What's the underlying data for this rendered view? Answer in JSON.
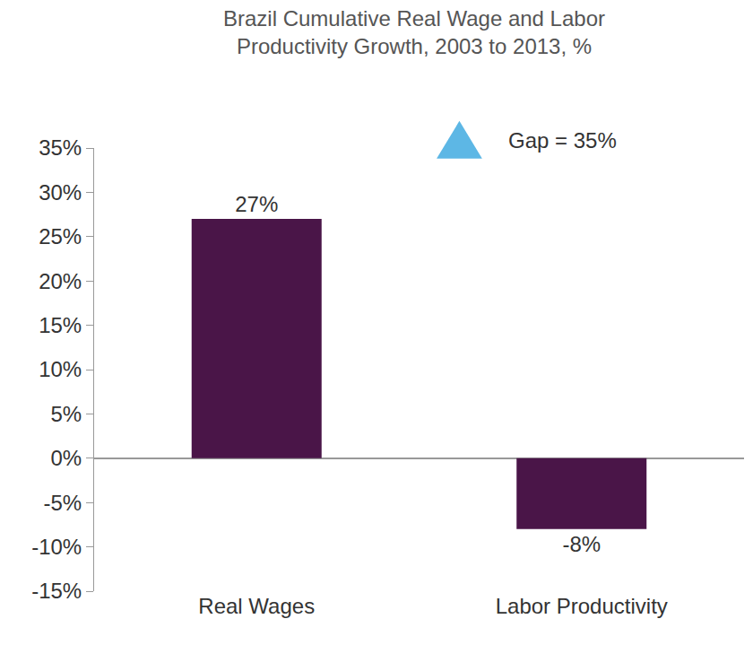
{
  "chart_data": {
    "type": "bar",
    "title": "Brazil Cumulative Real Wage and Labor Productivity Growth, 2003 to 2013, %",
    "categories": [
      "Real Wages",
      "Labor Productivity"
    ],
    "values": [
      27,
      -8
    ],
    "value_labels": [
      "27%",
      "-8%"
    ],
    "color": "#4a1548",
    "data_labels": true,
    "ylim": [
      -15,
      35
    ],
    "yticks": [
      {
        "value": -15,
        "label": "-15%"
      },
      {
        "value": -10,
        "label": "-10%"
      },
      {
        "value": -5,
        "label": "-5%"
      },
      {
        "value": 0,
        "label": "0%"
      },
      {
        "value": 5,
        "label": "5%"
      },
      {
        "value": 10,
        "label": "10%"
      },
      {
        "value": 15,
        "label": "15%"
      },
      {
        "value": 20,
        "label": "20%"
      },
      {
        "value": 25,
        "label": "25%"
      },
      {
        "value": 30,
        "label": "30%"
      },
      {
        "value": 35,
        "label": "35%"
      }
    ],
    "grid": false,
    "annotations": [
      "Gap = 35%"
    ]
  }
}
